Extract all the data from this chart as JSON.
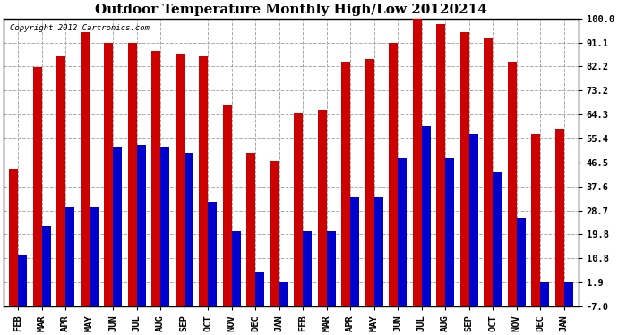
{
  "title": "Outdoor Temperature Monthly High/Low 20120214",
  "copyright": "Copyright 2012 Cartronics.com",
  "months": [
    "FEB",
    "MAR",
    "APR",
    "MAY",
    "JUN",
    "JUL",
    "AUG",
    "SEP",
    "OCT",
    "NOV",
    "DEC",
    "JAN",
    "FEB",
    "MAR",
    "APR",
    "MAY",
    "JUN",
    "JUL",
    "AUG",
    "SEP",
    "OCT",
    "NOV",
    "DEC",
    "JAN"
  ],
  "highs": [
    44,
    82,
    86,
    95,
    91,
    91,
    88,
    87,
    86,
    68,
    50,
    47,
    65,
    66,
    84,
    85,
    91,
    100,
    98,
    95,
    93,
    84,
    57,
    59
  ],
  "lows": [
    12,
    23,
    30,
    30,
    52,
    53,
    52,
    50,
    32,
    21,
    6,
    2,
    21,
    21,
    34,
    34,
    48,
    60,
    48,
    57,
    43,
    26,
    2,
    2
  ],
  "high_color": "#cc0000",
  "low_color": "#0000cc",
  "background_color": "#ffffff",
  "plot_bg_color": "#ffffff",
  "yticks": [
    100.0,
    91.1,
    82.2,
    73.2,
    64.3,
    55.4,
    46.5,
    37.6,
    28.7,
    19.8,
    10.8,
    1.9,
    -7.0
  ],
  "ylim": [
    -7.0,
    100.0
  ],
  "ymin": -7.0,
  "grid_color": "#aaaaaa",
  "title_fontsize": 11,
  "tick_fontsize": 7.5,
  "bar_width": 0.38
}
